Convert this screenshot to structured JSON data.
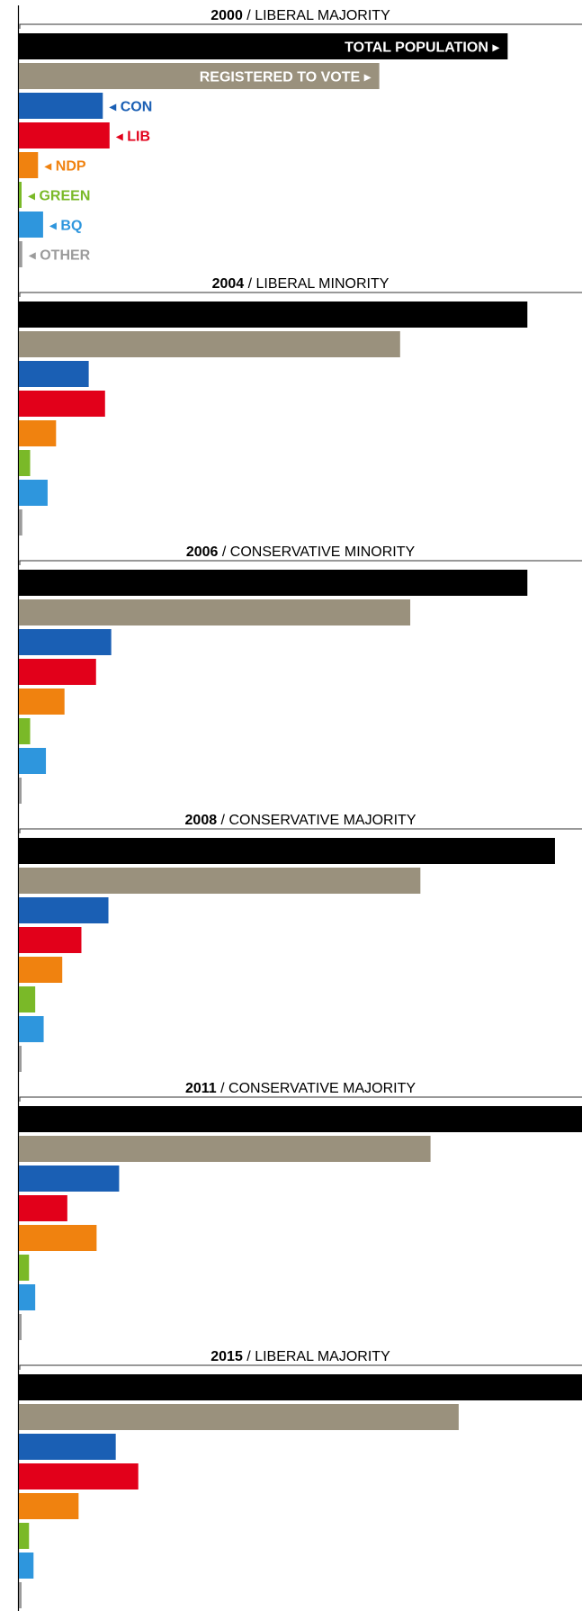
{
  "chart_data": {
    "type": "bar",
    "orientation": "horizontal",
    "categories": [
      "TOTAL POPULATION",
      "REGISTERED TO VOTE",
      "CON",
      "LIB",
      "NDP",
      "GREEN",
      "BQ",
      "OTHER"
    ],
    "unit": "share of maximum total population (relative)",
    "xlim": [
      0,
      1
    ],
    "grid": false,
    "legend": "inline-labels-first-panel",
    "colors": {
      "TOTAL POPULATION": "#000000",
      "REGISTERED TO VOTE": "#9a917d",
      "CON": "#1a5fb4",
      "LIB": "#e2001a",
      "NDP": "#f0820f",
      "GREEN": "#7ab928",
      "BQ": "#2e96dd",
      "OTHER": "#9b9b9b"
    },
    "label_text_colors": {
      "TOTAL POPULATION": "#ffffff",
      "REGISTERED TO VOTE": "#ffffff",
      "CON": "#1a5fb4",
      "LIB": "#e2001a",
      "NDP": "#f0820f",
      "GREEN": "#7ab928",
      "BQ": "#2e96dd",
      "OTHER": "#9b9b9b"
    },
    "label_arrows": {
      "TOTAL POPULATION": "▸",
      "REGISTERED TO VOTE": "▸",
      "CON": "◂",
      "LIB": "◂",
      "NDP": "◂",
      "GREEN": "◂",
      "BQ": "◂",
      "OTHER": "◂"
    },
    "panels": [
      {
        "year": "2000",
        "result": "LIBERAL MAJORITY",
        "values": [
          0.868,
          0.64,
          0.149,
          0.161,
          0.034,
          0.004,
          0.043,
          0.006
        ]
      },
      {
        "year": "2004",
        "result": "LIBERAL MINORITY",
        "values": [
          0.903,
          0.677,
          0.124,
          0.153,
          0.066,
          0.02,
          0.051,
          0.006
        ]
      },
      {
        "year": "2006",
        "result": "CONSERVATIVE MINORITY",
        "values": [
          0.903,
          0.695,
          0.164,
          0.137,
          0.081,
          0.02,
          0.048,
          0.004
        ]
      },
      {
        "year": "2008",
        "result": "CONSERVATIVE MAJORITY",
        "values": [
          0.952,
          0.713,
          0.159,
          0.111,
          0.077,
          0.029,
          0.044,
          0.004
        ]
      },
      {
        "year": "2011",
        "result": "CONSERVATIVE MAJORITY",
        "values": [
          1.0,
          0.731,
          0.178,
          0.086,
          0.138,
          0.018,
          0.029,
          0.004
        ]
      },
      {
        "year": "2015",
        "result": "LIBERAL MAJORITY",
        "values": [
          1.0,
          0.781,
          0.172,
          0.212,
          0.106,
          0.018,
          0.026,
          0.004
        ]
      }
    ]
  }
}
